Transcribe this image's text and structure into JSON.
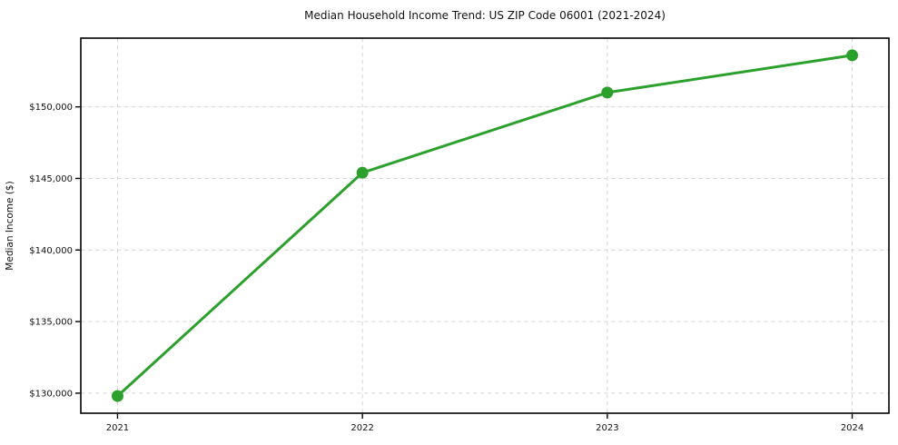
{
  "chart_data": {
    "type": "line",
    "title": "Median Household Income Trend: US ZIP Code 06001 (2021-2024)",
    "xlabel": "",
    "ylabel": "Median Income ($)",
    "x": [
      2021,
      2022,
      2023,
      2024
    ],
    "x_tick_labels": [
      "2021",
      "2022",
      "2023",
      "2024"
    ],
    "values": [
      129800,
      145400,
      151000,
      153600
    ],
    "y_ticks": [
      130000,
      135000,
      140000,
      145000,
      150000
    ],
    "y_tick_labels": [
      "$130,000",
      "$135,000",
      "$140,000",
      "$145,000",
      "$150,000"
    ],
    "xlim": [
      2020.85,
      2024.15
    ],
    "ylim": [
      128600,
      154800
    ],
    "line_color": "#2ca02c",
    "marker": "circle",
    "marker_color": "#2ca02c",
    "grid": {
      "visible": true,
      "style": "dashed",
      "color": "#d6d6d6"
    },
    "legend": {
      "visible": false
    },
    "text_color": "#111111",
    "spine_color": "#000000",
    "background_color": "#ffffff"
  }
}
